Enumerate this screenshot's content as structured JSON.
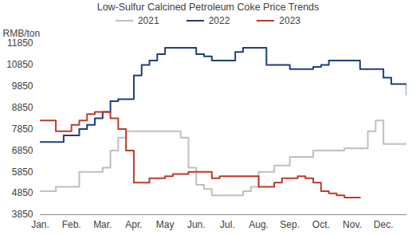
{
  "chart_data": {
    "type": "line",
    "title": "Low-Sulfur Calcined Petroleum Coke Price Trends",
    "y_label": "RMB/ton",
    "categories": [
      "Jan.",
      null,
      null,
      null,
      "Feb.",
      null,
      null,
      null,
      "Mar.",
      null,
      null,
      null,
      "Apr.",
      null,
      null,
      null,
      "May",
      null,
      null,
      null,
      "Jun.",
      null,
      null,
      null,
      "Jul.",
      null,
      null,
      null,
      "Aug.",
      null,
      null,
      null,
      "Sep.",
      null,
      null,
      null,
      "Oct.",
      null,
      null,
      null,
      "Nov.",
      null,
      null,
      null,
      "Dec.",
      null,
      null,
      null
    ],
    "series": [
      {
        "name": "2021",
        "color": "#bfbfbf",
        "values": [
          4950,
          4950,
          5150,
          5150,
          5150,
          5850,
          5850,
          5850,
          6050,
          6850,
          7450,
          7750,
          7750,
          7750,
          7750,
          7750,
          7750,
          7750,
          7450,
          6050,
          5250,
          5050,
          4750,
          4750,
          4750,
          4750,
          4950,
          5150,
          5850,
          5850,
          6150,
          6150,
          6550,
          6550,
          6550,
          6850,
          6850,
          6850,
          6850,
          6950,
          6950,
          6950,
          7750,
          8250,
          7150,
          7150,
          7150,
          7250
        ]
      },
      {
        "name": "2022",
        "color": "#1f3d7a",
        "values": [
          7250,
          7250,
          7250,
          7550,
          7550,
          7850,
          8050,
          8350,
          8650,
          9150,
          9250,
          9250,
          10350,
          10850,
          11050,
          11350,
          11650,
          11650,
          11650,
          11650,
          11350,
          11250,
          11050,
          11050,
          11050,
          11450,
          11650,
          11650,
          11650,
          10850,
          10850,
          10850,
          10650,
          10650,
          10650,
          10750,
          10850,
          11050,
          11050,
          11050,
          11050,
          10650,
          10650,
          10650,
          10250,
          9950,
          9950,
          9450
        ]
      },
      {
        "name": "2023",
        "color": "#c0392b",
        "values": [
          8250,
          8250,
          7750,
          7750,
          8050,
          8250,
          8550,
          8650,
          8650,
          8350,
          7850,
          6850,
          5350,
          5350,
          5550,
          5550,
          5650,
          5750,
          5750,
          5850,
          5850,
          5850,
          5550,
          5650,
          5650,
          5650,
          5650,
          5650,
          5150,
          5150,
          5350,
          5550,
          5550,
          5650,
          5550,
          5350,
          4950,
          4850,
          4750,
          4650,
          4650,
          4650,
          null,
          null,
          null,
          null,
          null,
          null
        ]
      }
    ],
    "ylim": [
      3850,
      11850
    ],
    "yticks": [
      3850,
      4850,
      5850,
      6850,
      7850,
      8850,
      9850,
      10850,
      11850
    ],
    "grid": false,
    "legend": "top"
  }
}
